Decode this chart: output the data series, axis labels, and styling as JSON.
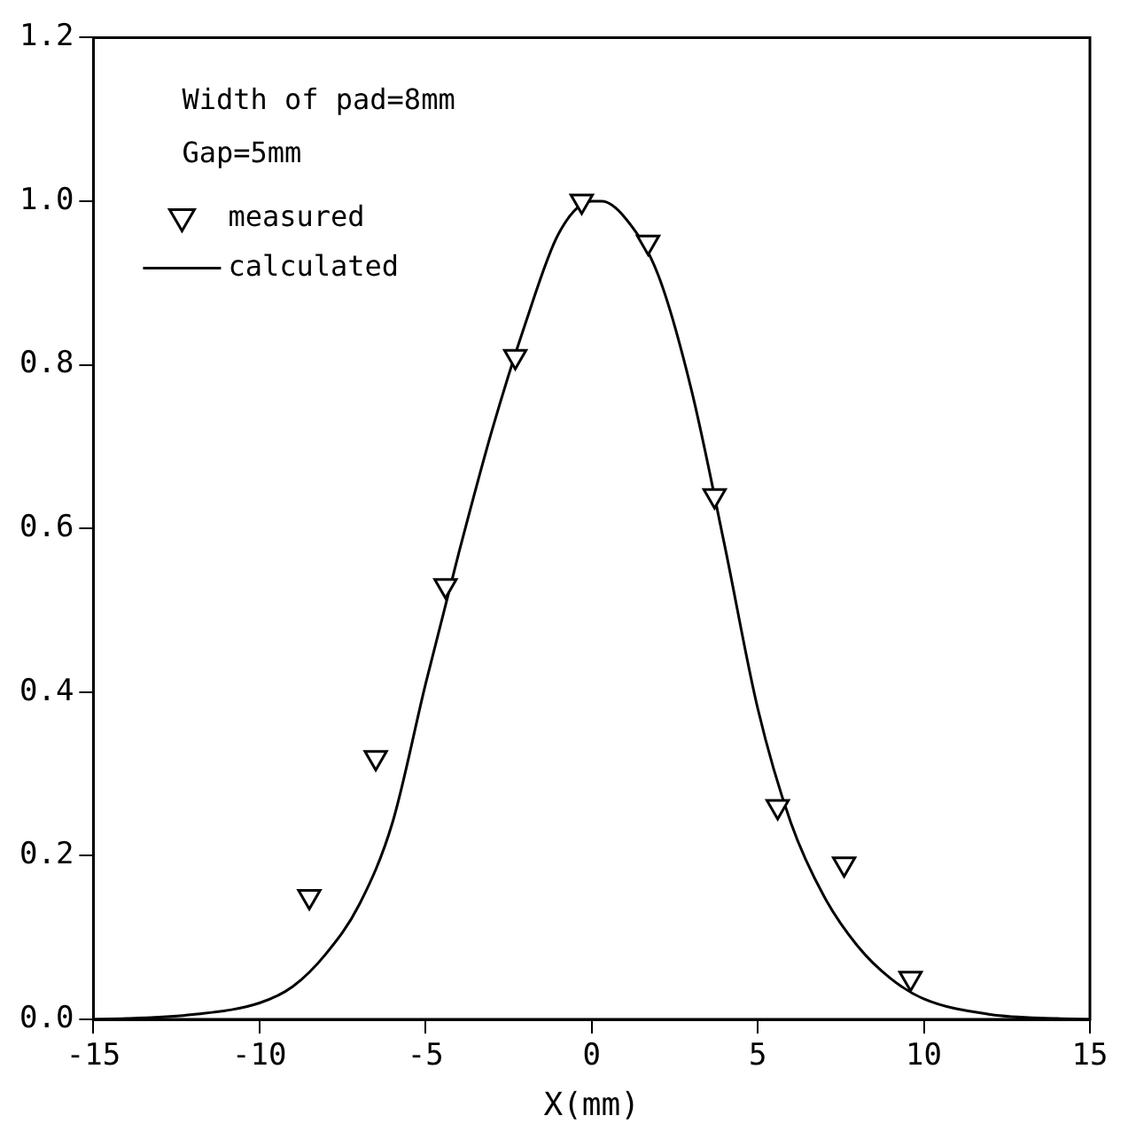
{
  "chart_data": {
    "type": "scatter",
    "xlabel": "X(mm)",
    "annotations": [
      "Width of pad=8mm",
      "Gap=5mm"
    ],
    "series": [
      {
        "name": "measured",
        "type": "scatter",
        "color": "#000000",
        "marker": "triangle",
        "x": [
          -8.5,
          -6.5,
          -4.4,
          -2.3,
          -0.3,
          1.7,
          3.7,
          5.6,
          7.6,
          9.6
        ],
        "values": [
          0.15,
          0.32,
          0.53,
          0.81,
          1.0,
          0.95,
          0.64,
          0.26,
          0.19,
          0.05
        ]
      },
      {
        "name": "calculated",
        "type": "line",
        "color": "#000000",
        "marker": "none",
        "line_style": "solid",
        "x": [
          -15,
          -14,
          -12,
          -10,
          -9,
          -8,
          -7,
          -6,
          -5,
          -4,
          -3,
          -2,
          -1,
          0,
          0.3,
          1,
          2,
          3,
          4,
          5,
          6,
          7,
          8,
          9,
          10,
          12,
          14,
          15
        ],
        "values": [
          0,
          0.001,
          0.006,
          0.02,
          0.04,
          0.08,
          0.14,
          0.24,
          0.41,
          0.57,
          0.72,
          0.85,
          0.96,
          1.0,
          1.0,
          0.98,
          0.91,
          0.77,
          0.58,
          0.38,
          0.24,
          0.15,
          0.09,
          0.05,
          0.025,
          0.006,
          0.001,
          0
        ]
      }
    ],
    "xlim": [
      -15,
      15
    ],
    "xticks": [
      -15,
      -10,
      -5,
      0,
      5,
      10,
      15
    ],
    "ylim": [
      0,
      1.2
    ],
    "yticks": [
      {
        "value": 0,
        "label": "0.0"
      },
      0.2,
      0.4,
      0.6,
      0.8,
      {
        "value": 1,
        "label": "1.0"
      },
      1.2
    ],
    "grid": false,
    "legend": "top left"
  }
}
